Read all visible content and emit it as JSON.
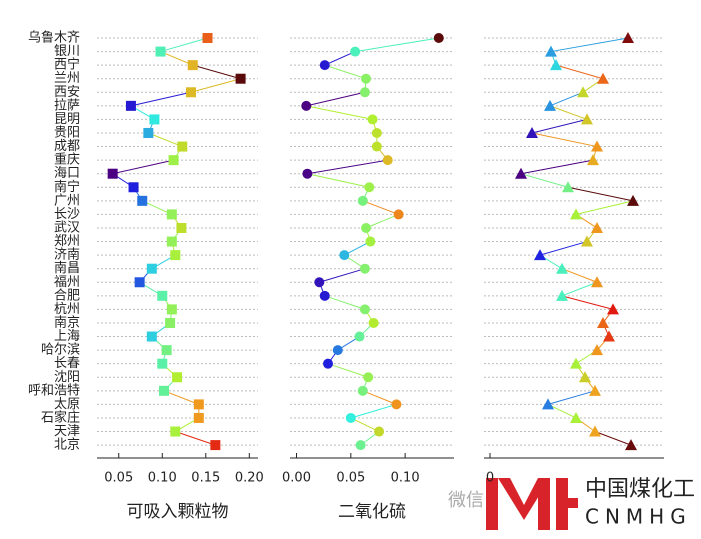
{
  "chart_data": [
    {
      "type": "line",
      "marker": "square",
      "xlabel": "可吸入颗粒物",
      "categories": [
        "乌鲁木齐",
        "银川",
        "西宁",
        "兰州",
        "西安",
        "拉萨",
        "昆明",
        "贵阳",
        "成都",
        "重庆",
        "海口",
        "南宁",
        "广州",
        "长沙",
        "武汉",
        "郑州",
        "济南",
        "南昌",
        "福州",
        "合肥",
        "杭州",
        "南京",
        "上海",
        "哈尔滨",
        "长春",
        "沈阳",
        "呼和浩特",
        "太原",
        "石家庄",
        "天津",
        "北京"
      ],
      "values": [
        0.152,
        0.098,
        0.135,
        0.19,
        0.133,
        0.064,
        0.091,
        0.084,
        0.123,
        0.113,
        0.043,
        0.067,
        0.077,
        0.111,
        0.122,
        0.111,
        0.115,
        0.088,
        0.074,
        0.1,
        0.111,
        0.109,
        0.088,
        0.105,
        0.1,
        0.117,
        0.102,
        0.142,
        0.142,
        0.115,
        0.161
      ],
      "xlim": [
        0.025,
        0.21
      ],
      "xticks": [
        {
          "value": 0.05,
          "label": "0.05"
        },
        {
          "value": 0.1,
          "label": "0.10"
        },
        {
          "value": 0.15,
          "label": "0.15"
        },
        {
          "value": 0.2,
          "label": "0.20"
        }
      ],
      "colormap": [
        "#4b0082",
        "#2020e0",
        "#30f0e0",
        "#b0f030",
        "#f0a020",
        "#e01010",
        "#5a0a0a"
      ],
      "grid": true
    },
    {
      "type": "line",
      "marker": "circle",
      "xlabel": "二氧化硫",
      "values": [
        0.131,
        0.054,
        0.026,
        0.064,
        0.063,
        0.009,
        0.07,
        0.074,
        0.074,
        0.084,
        0.01,
        0.067,
        0.061,
        0.094,
        0.064,
        0.068,
        0.044,
        0.063,
        0.021,
        0.026,
        0.063,
        0.071,
        0.058,
        0.038,
        0.029,
        0.066,
        0.061,
        0.092,
        0.05,
        0.076,
        0.059
      ],
      "xlim": [
        -0.006,
        0.145
      ],
      "xticks": [
        {
          "value": 0,
          "label": "0.00"
        },
        {
          "value": 0.05,
          "label": "0.05"
        },
        {
          "value": 0.1,
          "label": "0.10"
        }
      ],
      "colormap": [
        "#4b0082",
        "#2020e0",
        "#30f0e0",
        "#b0f030",
        "#f0a020",
        "#e01010",
        "#5a0a0a"
      ],
      "grid": true
    },
    {
      "type": "line",
      "marker": "triangle",
      "values": [
        138,
        61,
        66,
        113,
        93,
        60,
        97,
        42,
        107,
        103,
        31,
        78,
        143,
        86,
        107,
        97,
        50,
        72,
        107,
        72,
        123,
        113,
        119,
        107,
        86,
        95,
        105,
        58,
        86,
        105,
        141
      ],
      "xlim": [
        -6,
        174
      ],
      "xticks": [
        0
      ],
      "colormap": [
        "#4b0082",
        "#2020e0",
        "#30f0e0",
        "#b0f030",
        "#f0a020",
        "#e01010",
        "#5a0a0a"
      ],
      "grid": true
    }
  ],
  "watermark": {
    "text": "微信",
    "brand": "中国煤化工",
    "brand_en": "CNMHG"
  }
}
